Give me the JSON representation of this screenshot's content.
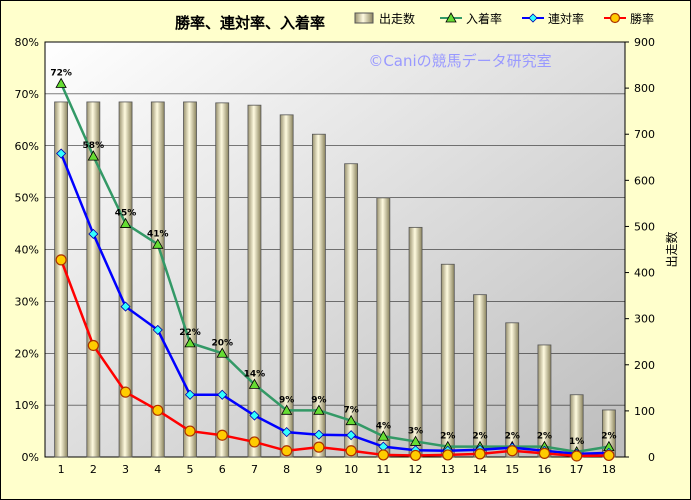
{
  "chart_data": {
    "type": "bar+line",
    "title": "勝率、連対率、入着率",
    "watermark": "©Caniの競馬データ研究室",
    "categories": [
      "1",
      "2",
      "3",
      "4",
      "5",
      "6",
      "7",
      "8",
      "9",
      "10",
      "11",
      "12",
      "13",
      "14",
      "15",
      "16",
      "17",
      "18"
    ],
    "bar_series": {
      "name": "出走数",
      "axis": "right",
      "values": [
        770,
        770,
        770,
        770,
        770,
        768,
        763,
        742,
        700,
        636,
        562,
        498,
        418,
        352,
        291,
        243,
        135,
        102
      ]
    },
    "series": [
      {
        "name": "入着率",
        "color": "#339966",
        "marker": "triangle",
        "axis": "left",
        "values": [
          72,
          58,
          45,
          41,
          22,
          20,
          14,
          9,
          9,
          7,
          4,
          3,
          2,
          2,
          2,
          2,
          1,
          2
        ]
      },
      {
        "name": "連対率",
        "color": "#0000ff",
        "marker": "diamond",
        "axis": "left",
        "values": [
          58.5,
          43,
          29,
          24.5,
          12,
          12,
          8,
          4.8,
          4.3,
          4.2,
          2,
          1.3,
          1.2,
          1.4,
          1.8,
          1.2,
          0.6,
          0.8
        ]
      },
      {
        "name": "勝率",
        "color": "#ff0000",
        "marker": "circle",
        "axis": "left",
        "values": [
          38,
          21.5,
          12.5,
          9,
          5,
          4.2,
          2.9,
          1.2,
          1.9,
          1.2,
          0.4,
          0.3,
          0.4,
          0.6,
          1.2,
          0.7,
          0.2,
          0.3
        ]
      }
    ],
    "data_labels": [
      "72%",
      "58%",
      "45%",
      "41%",
      "22%",
      "20%",
      "14%",
      "9%",
      "9%",
      "7%",
      "4%",
      "3%",
      "2%",
      "2%",
      "2%",
      "2%",
      "1%",
      "2%"
    ],
    "y_left": {
      "min": 0,
      "max": 80,
      "step": 10,
      "ticks": [
        "0%",
        "10%",
        "20%",
        "30%",
        "40%",
        "50%",
        "60%",
        "70%",
        "80%"
      ]
    },
    "y_right": {
      "min": 0,
      "max": 900,
      "step": 100,
      "ticks": [
        "0",
        "100",
        "200",
        "300",
        "400",
        "500",
        "600",
        "700",
        "800",
        "900"
      ],
      "label": "出走数"
    },
    "xlabel": "",
    "grid": true,
    "legend_placement": "top",
    "colors": {
      "background": "#ffffcc",
      "bar_fill": "#e8e4b0",
      "bar_stroke": "#555555",
      "watermark": "#9999ff"
    }
  }
}
